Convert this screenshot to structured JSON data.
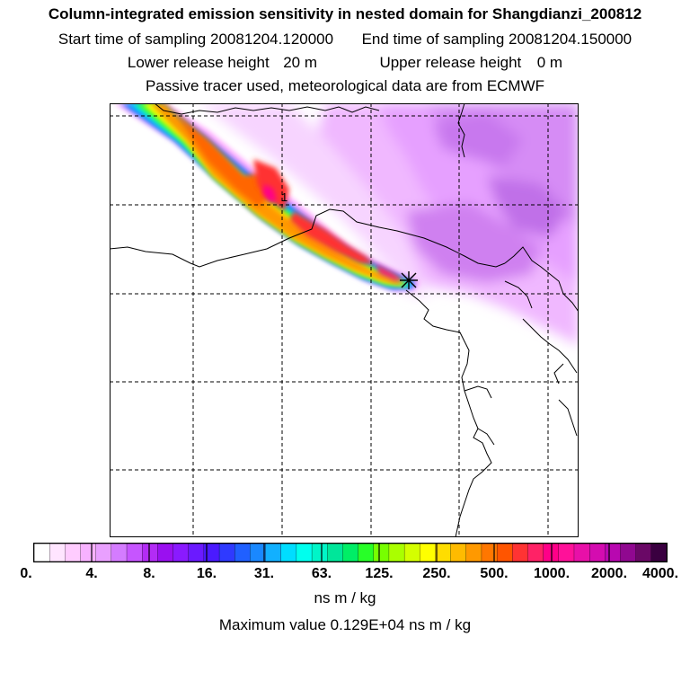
{
  "header": {
    "title": "Column-integrated emission sensitivity in nested domain for Shangdianzi_200812",
    "start_label": "Start time of sampling",
    "start_value": "20081204.120000",
    "end_label": "End time of sampling",
    "end_value": "20081204.150000",
    "lower_label": "Lower release height",
    "lower_value": "20 m",
    "upper_label": "Upper release height",
    "upper_value": "0 m",
    "source_note": "Passive tracer used, meteorological data are from ECMWF"
  },
  "map": {
    "contour_label": "1",
    "release_marker": "asterisk-icon"
  },
  "colorbar": {
    "tick_labels": [
      "0.",
      "4.",
      "8.",
      "16.",
      "31.",
      "63.",
      "125.",
      "250.",
      "500.",
      "1000.",
      "2000.",
      "4000."
    ],
    "colors": [
      "#ffffff",
      "#ffe5ff",
      "#ffccff",
      "#f7b2ff",
      "#e9a0ff",
      "#d47cff",
      "#c655ff",
      "#b32cf5",
      "#9a10f0",
      "#8a1aff",
      "#6b1aff",
      "#4a1aff",
      "#2f3aff",
      "#2060ff",
      "#1a88ff",
      "#12b0ff",
      "#00ddff",
      "#00ffee",
      "#00f5c8",
      "#00e69a",
      "#00ee66",
      "#28ff28",
      "#77ff00",
      "#aaff00",
      "#d4ff00",
      "#ffff00",
      "#ffdd00",
      "#ffbb00",
      "#ff9900",
      "#ff7700",
      "#ff5500",
      "#ff3333",
      "#ff2266",
      "#ff0088",
      "#ff1199",
      "#e810a8",
      "#d40cb0",
      "#b808b0",
      "#900890",
      "#6a0866",
      "#3a0040"
    ],
    "units": "ns m / kg"
  },
  "footer": {
    "max_label": "Maximum value",
    "max_value": "0.129E+04",
    "max_units": "ns m / kg"
  }
}
